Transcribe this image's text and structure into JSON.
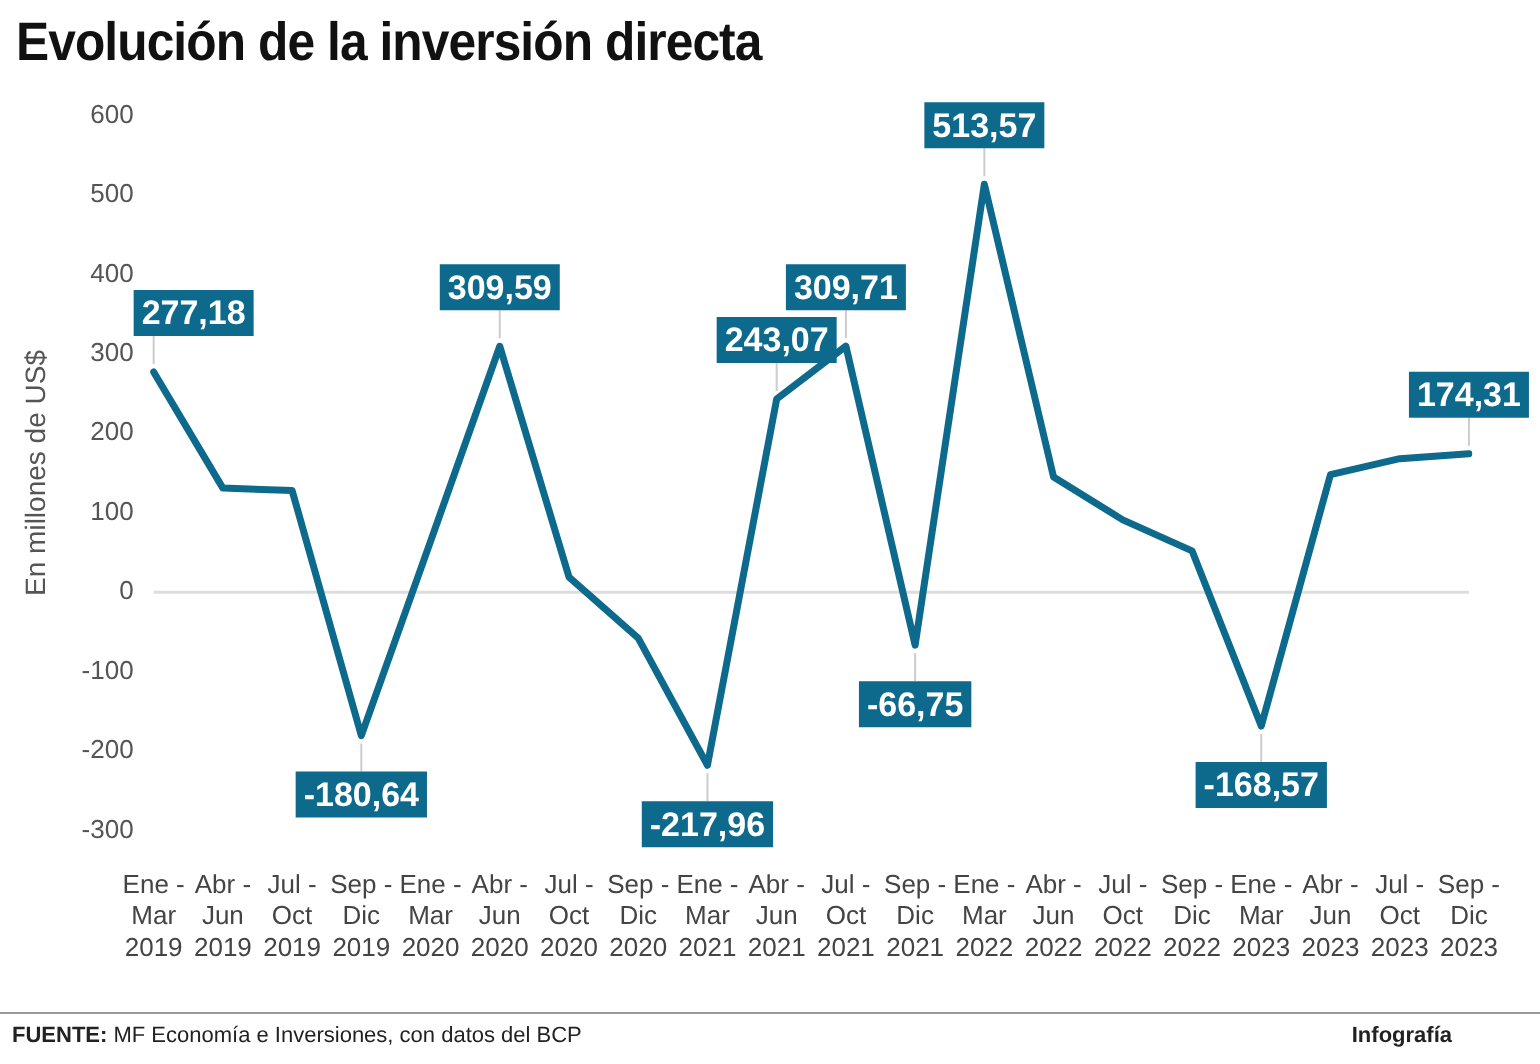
{
  "chart_data": {
    "type": "line",
    "title": "Evolución de la inversión directa",
    "ylabel": "En millones de US$",
    "categories": [
      "Ene -\nMar\n2019",
      "Abr -\nJun\n2019",
      "Jul -\nOct\n2019",
      "Sep -\nDic\n2019",
      "Ene -\nMar\n2020",
      "Abr -\nJun\n2020",
      "Jul -\nOct\n2020",
      "Sep -\nDic\n2020",
      "Ene -\nMar\n2021",
      "Abr -\nJun\n2021",
      "Jul -\nOct\n2021",
      "Sep -\nDic\n2021",
      "Ene -\nMar\n2022",
      "Abr -\nJun\n2022",
      "Jul -\nOct\n2022",
      "Sep -\nDic\n2022",
      "Ene -\nMar\n2023",
      "Abr -\nJun\n2023",
      "Jul -\nOct\n2023",
      "Sep -\nDic\n2023"
    ],
    "series": [
      {
        "color": "#0e6a8c",
        "values": [
          277.18,
          131,
          128,
          -180.64,
          64,
          309.59,
          19,
          -58,
          -217.96,
          243.07,
          309.71,
          -66.75,
          513.57,
          145,
          91,
          52,
          -168.57,
          148,
          168,
          174.31
        ],
        "value_labels": [
          "277,18",
          null,
          null,
          "-180,64",
          null,
          "309,59",
          null,
          null,
          "-217,96",
          "243,07",
          "309,71",
          "-66,75",
          "513,57",
          null,
          null,
          null,
          "-168,57",
          null,
          null,
          "174,31"
        ]
      }
    ],
    "ylim": [
      -300,
      600
    ],
    "yticks": [
      -300,
      -200,
      -100,
      0,
      100,
      200,
      300,
      400,
      500,
      600
    ],
    "ref_lines": [
      {
        "axis": "y",
        "value": 0,
        "color": "#dddddd"
      }
    ],
    "grid": false,
    "legend": false,
    "marker": "none",
    "line_style": "solid",
    "annotations": [
      "FUENTE: MF Economía e Inversiones, con datos del BCP",
      "Infografía"
    ]
  }
}
